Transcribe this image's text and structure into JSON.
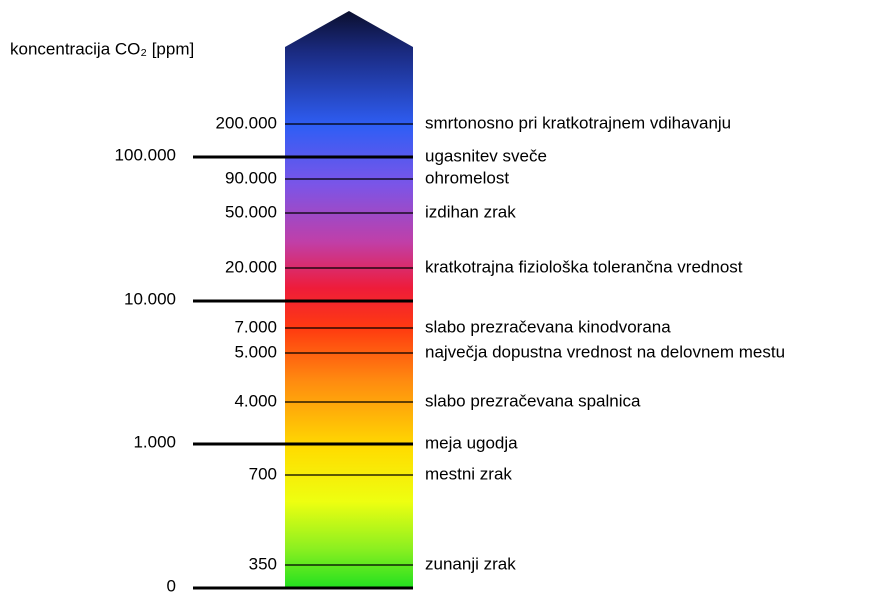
{
  "title": "koncentracija CO₂ [ppm]",
  "major": [
    {
      "label": "100.000",
      "note": "ugasnitev sveče"
    },
    {
      "label": "10.000"
    },
    {
      "label": "1.000",
      "note": "meja ugodja"
    },
    {
      "label": "0"
    }
  ],
  "minor": [
    {
      "label": "200.000",
      "note": "smrtonosno pri kratkotrajnem vdihavanju"
    },
    {
      "label": "90.000",
      "note": "ohromelost"
    },
    {
      "label": "50.000",
      "note": "izdihan zrak"
    },
    {
      "label": "20.000",
      "note": "kratkotrajna fiziološka tolerančna vrednost"
    },
    {
      "label": "7.000",
      "note": "slabo prezračevana kinodvorana"
    },
    {
      "label": "5.000",
      "note": "največja dopustna vrednost na delovnem mestu"
    },
    {
      "label": "4.000",
      "note": "slabo prezračevana spalnica"
    },
    {
      "label": "700",
      "note": "mestni zrak"
    },
    {
      "label": "350",
      "note": "zunanji zrak"
    }
  ]
}
